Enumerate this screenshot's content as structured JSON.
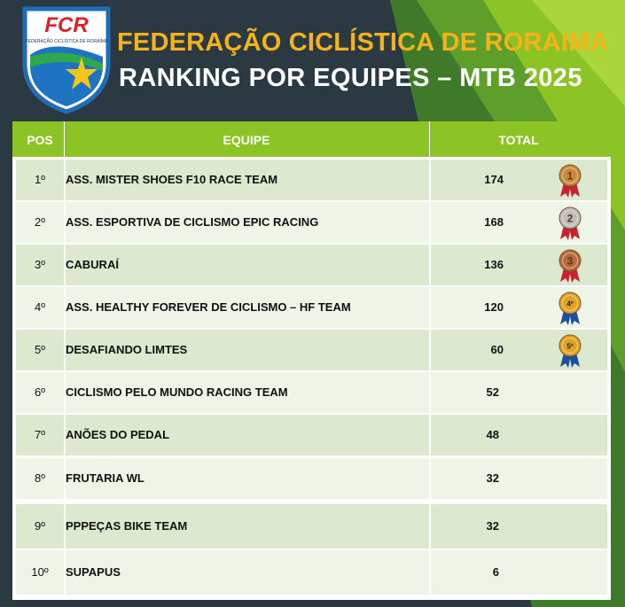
{
  "header": {
    "title": "FEDERAÇÃO CICLÍSTICA DE RORAIMA",
    "subtitle": "RANKING POR EQUIPES – MTB 2025"
  },
  "logo": {
    "text": "FCR",
    "caption": "FEDERAÇÃO CICLÍSTICA DE RORAIMA"
  },
  "table": {
    "columns": {
      "pos": "POS",
      "team": "EQUIPE",
      "total": "TOTAL"
    },
    "rows": [
      {
        "pos": "1º",
        "team": "ASS. MISTER SHOES F10 RACE TEAM",
        "total": "174",
        "medal": "1",
        "medal_color": "#c9873a"
      },
      {
        "pos": "2º",
        "team": "ASS. ESPORTIVA DE CICLISMO EPIC RACING",
        "total": "168",
        "medal": "2",
        "medal_color": "#bdbdbd"
      },
      {
        "pos": "3º",
        "team": "CABURAÍ",
        "total": "136",
        "medal": "3",
        "medal_color": "#b86a3a"
      },
      {
        "pos": "4º",
        "team": "ASS. HEALTHY FOREVER DE CICLISMO – HF TEAM",
        "total": "120",
        "medal": "4º",
        "medal_color": "#e0a21f"
      },
      {
        "pos": "5º",
        "team": "DESAFIANDO LIMTES",
        "total": "60",
        "medal": "5º",
        "medal_color": "#e0a21f"
      },
      {
        "pos": "6º",
        "team": "CICLISMO PELO MUNDO RACING TEAM",
        "total": "52"
      },
      {
        "pos": "7º",
        "team": "ANÕES DO PEDAL",
        "total": "48"
      },
      {
        "pos": "8º",
        "team": "FRUTARIA WL",
        "total": "32"
      },
      {
        "pos": "9º",
        "team": "PPPEÇAS BIKE TEAM",
        "total": "32"
      },
      {
        "pos": "10º",
        "team": "SUPAPUS",
        "total": "6"
      }
    ]
  },
  "colors": {
    "header_green": "#8cc425",
    "title_gold": "#f5b21a",
    "row_dark": "#dce9cf",
    "row_light": "#eef4e8",
    "background": "#2b3a42"
  }
}
